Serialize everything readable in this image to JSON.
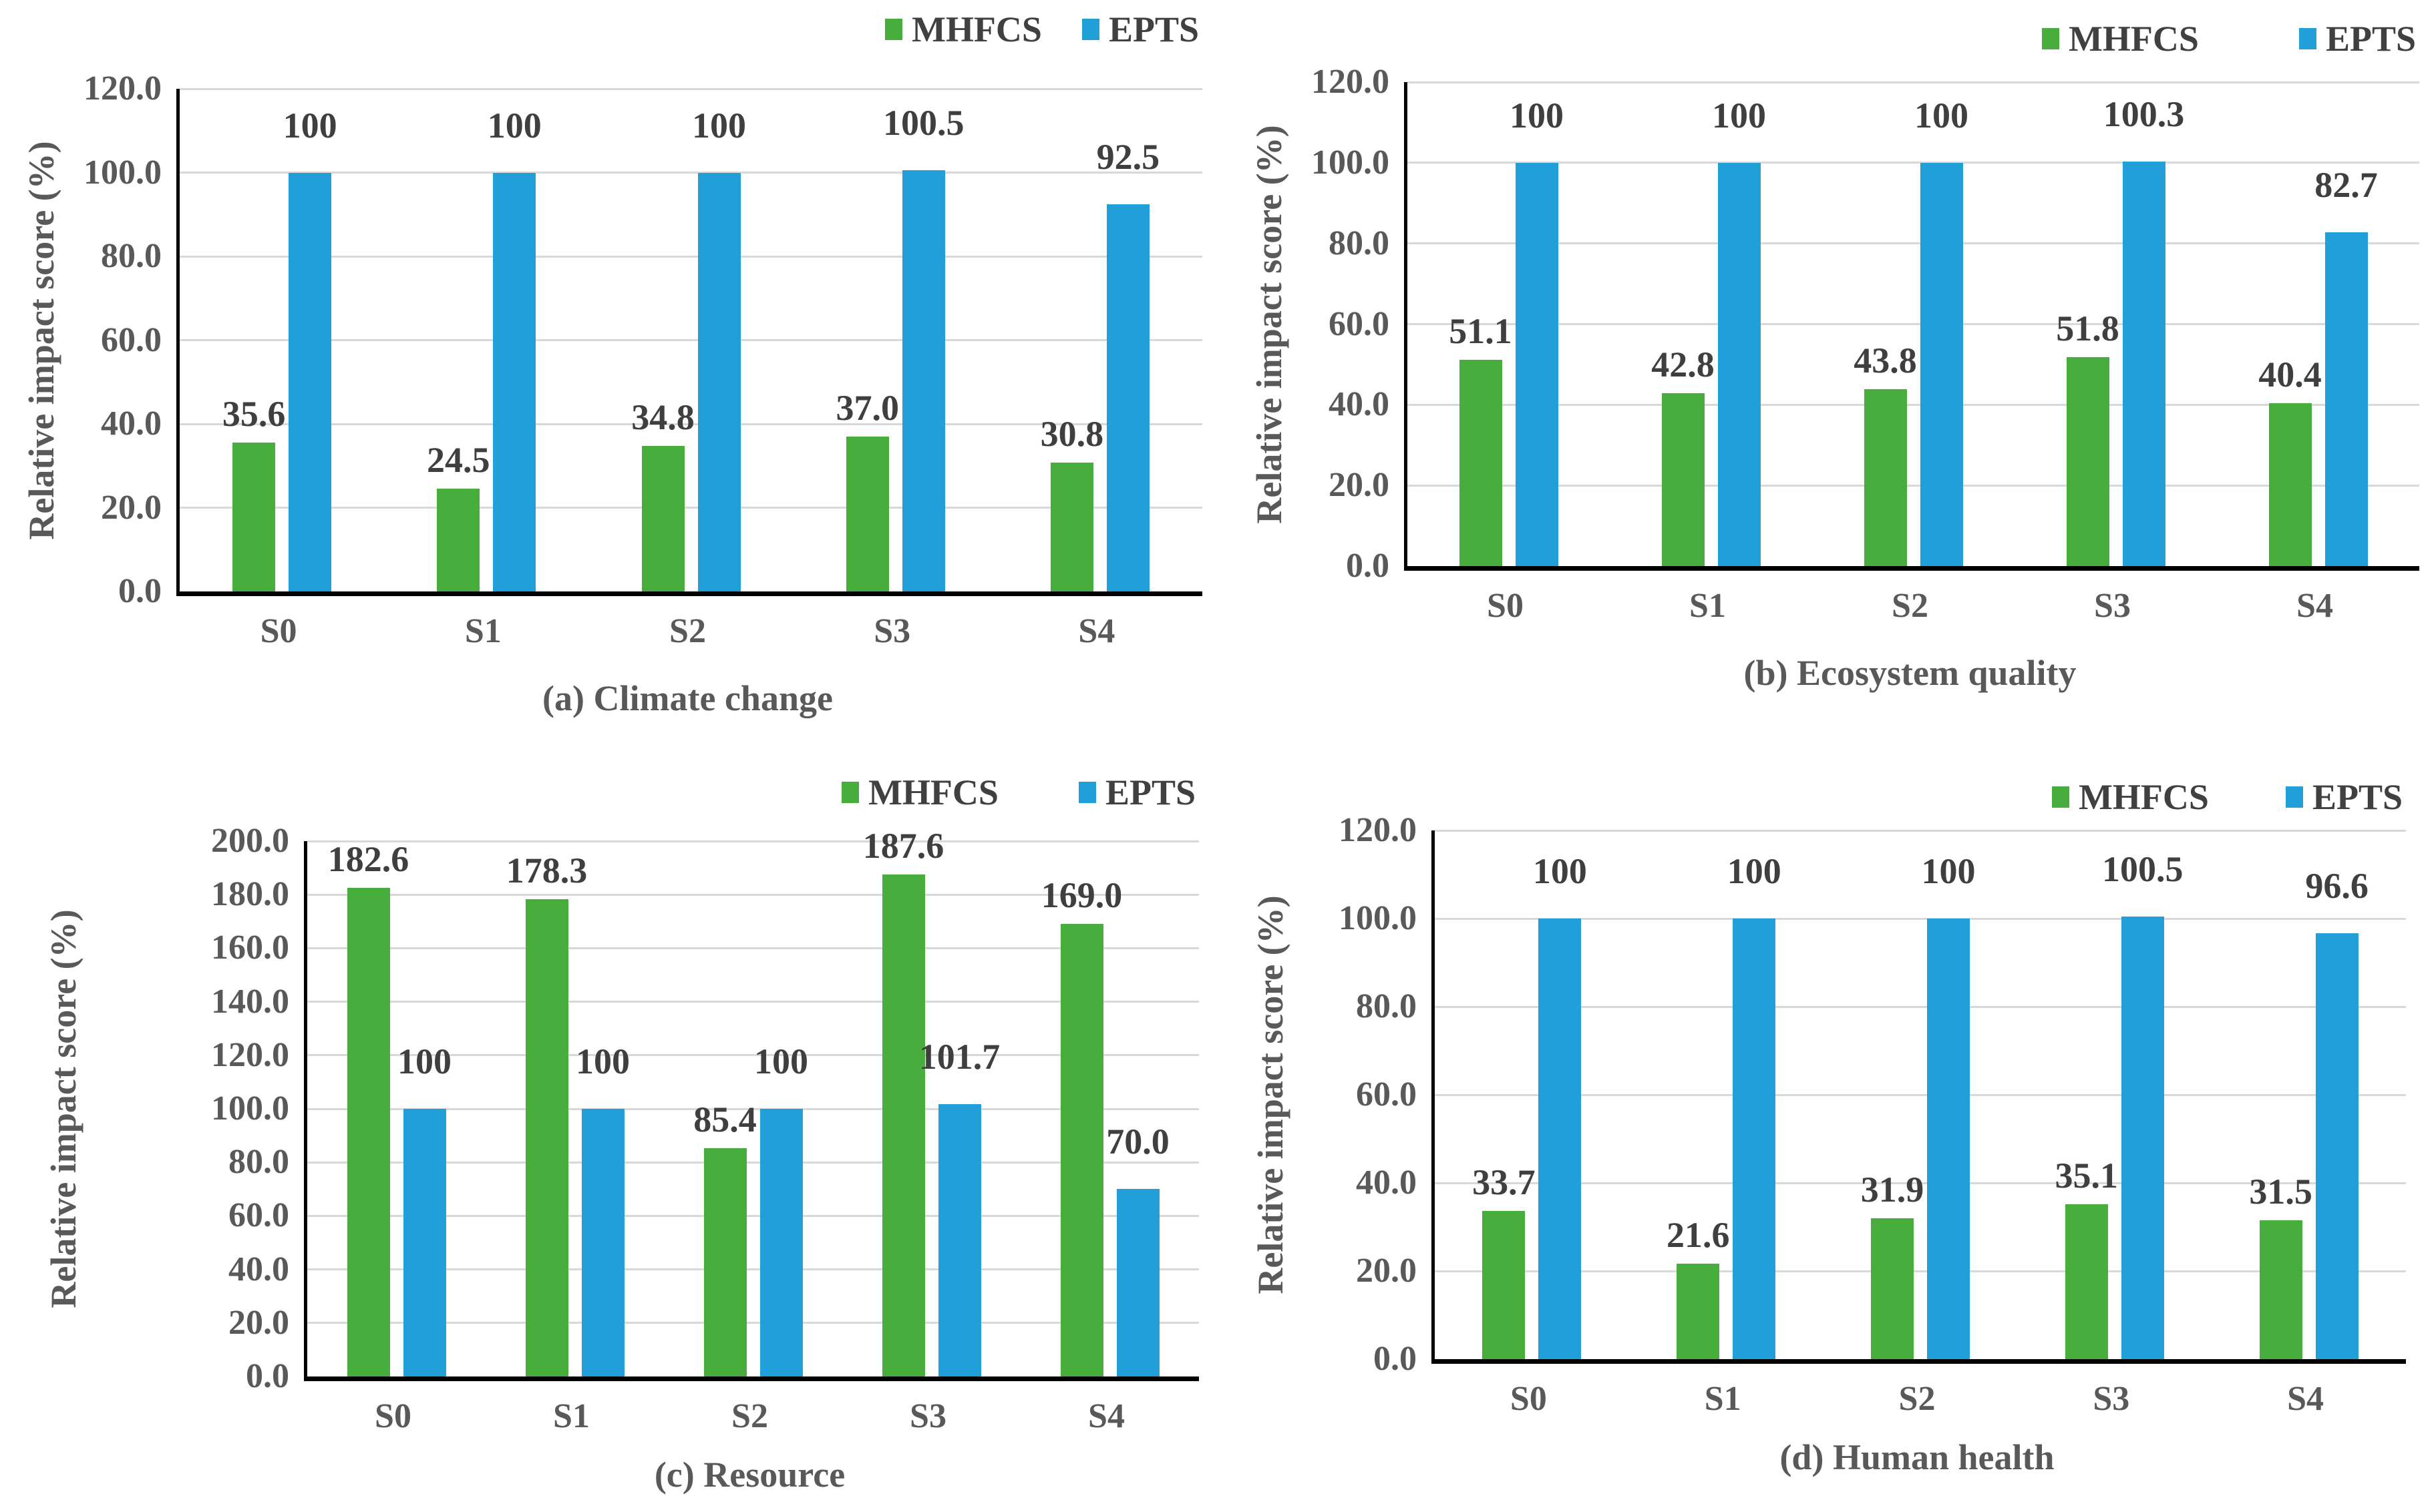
{
  "legend": {
    "items": [
      {
        "label": "MHFCS",
        "color": "#47ae3d"
      },
      {
        "label": "EPTS",
        "color": "#219fd9"
      }
    ]
  },
  "colors": {
    "mhfcs_green": "#47ae3d",
    "epts_blue": "#219fd9",
    "data_label": "#3f3f3f",
    "axis_text": "#595959",
    "gridline": "#d9d9d9",
    "axis_line": "#000000"
  },
  "chart_data": [
    {
      "id": "a",
      "type": "bar",
      "caption": "(a) Climate change",
      "ylabel": "Relative impact score (%)",
      "ylim": [
        0,
        120
      ],
      "tick_step": 20,
      "yticks": [
        "120.0",
        "100.0",
        "80.0",
        "60.0",
        "40.0",
        "20.0",
        "0.0"
      ],
      "categories": [
        "S0",
        "S1",
        "S2",
        "S3",
        "S4"
      ],
      "grid": "horizontal",
      "legend_position": "top-right",
      "series": [
        {
          "name": "MHFCS",
          "values": [
            35.6,
            24.5,
            34.8,
            37.0,
            30.8
          ],
          "labels": [
            "35.6",
            "24.5",
            "34.8",
            "37.0",
            "30.8"
          ]
        },
        {
          "name": "EPTS",
          "values": [
            100,
            100,
            100,
            100.5,
            92.5
          ],
          "labels": [
            "100",
            "100",
            "100",
            "100.5",
            "92.5"
          ]
        }
      ]
    },
    {
      "id": "b",
      "type": "bar",
      "caption": "(b) Ecosystem quality",
      "ylabel": "Relative impact score (%)",
      "ylim": [
        0,
        120
      ],
      "tick_step": 20,
      "yticks": [
        "120.0",
        "100.0",
        "80.0",
        "60.0",
        "40.0",
        "20.0",
        "0.0"
      ],
      "categories": [
        "S0",
        "S1",
        "S2",
        "S3",
        "S4"
      ],
      "grid": "horizontal",
      "legend_position": "top-right",
      "series": [
        {
          "name": "MHFCS",
          "values": [
            51.1,
            42.8,
            43.8,
            51.8,
            40.4
          ],
          "labels": [
            "51.1",
            "42.8",
            "43.8",
            "51.8",
            "40.4"
          ]
        },
        {
          "name": "EPTS",
          "values": [
            100,
            100,
            100,
            100.3,
            82.7
          ],
          "labels": [
            "100",
            "100",
            "100",
            "100.3",
            "82.7"
          ]
        }
      ]
    },
    {
      "id": "c",
      "type": "bar",
      "caption": "(c) Resource",
      "ylabel": "Relative impact score (%)",
      "ylim": [
        0,
        200
      ],
      "tick_step": 20,
      "yticks": [
        "200.0",
        "180.0",
        "160.0",
        "140.0",
        "120.0",
        "100.0",
        "80.0",
        "60.0",
        "40.0",
        "20.0",
        "0.0"
      ],
      "categories": [
        "S0",
        "S1",
        "S2",
        "S3",
        "S4"
      ],
      "grid": "horizontal",
      "legend_position": "top-right",
      "series": [
        {
          "name": "MHFCS",
          "values": [
            182.6,
            178.3,
            85.4,
            187.6,
            169.0
          ],
          "labels": [
            "182.6",
            "178.3",
            "85.4",
            "187.6",
            "169.0"
          ]
        },
        {
          "name": "EPTS",
          "values": [
            100,
            100,
            100,
            101.7,
            70.0
          ],
          "labels": [
            "100",
            "100",
            "100",
            "101.7",
            "70.0"
          ]
        }
      ]
    },
    {
      "id": "d",
      "type": "bar",
      "caption": "(d) Human health",
      "ylabel": "Relative impact score (%)",
      "ylim": [
        0,
        120
      ],
      "tick_step": 20,
      "yticks": [
        "120.0",
        "100.0",
        "80.0",
        "60.0",
        "40.0",
        "20.0",
        "0.0"
      ],
      "categories": [
        "S0",
        "S1",
        "S2",
        "S3",
        "S4"
      ],
      "grid": "horizontal",
      "legend_position": "top-right",
      "series": [
        {
          "name": "MHFCS",
          "values": [
            33.7,
            21.6,
            31.9,
            35.1,
            31.5
          ],
          "labels": [
            "33.7",
            "21.6",
            "31.9",
            "35.1",
            "31.5"
          ]
        },
        {
          "name": "EPTS",
          "values": [
            100,
            100,
            100,
            100.5,
            96.6
          ],
          "labels": [
            "100",
            "100",
            "100",
            "100.5",
            "96.6"
          ]
        }
      ]
    }
  ]
}
